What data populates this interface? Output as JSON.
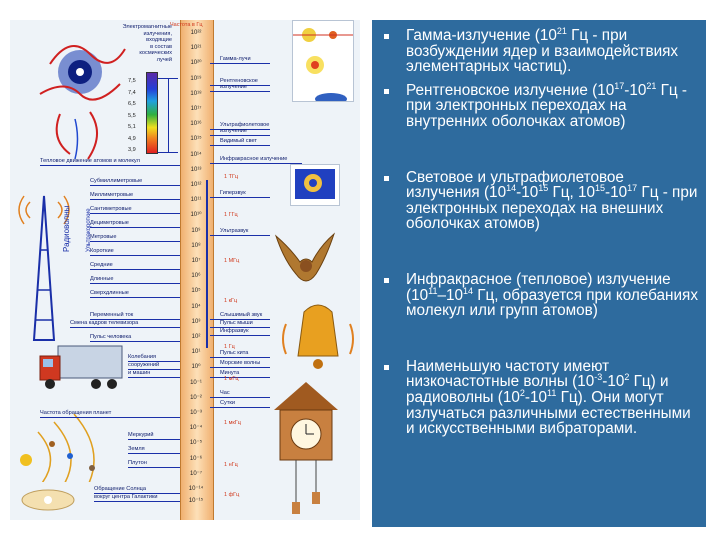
{
  "left": {
    "scale_header": "Частота в Гц",
    "top_labels": [
      "Электромагнитные",
      "излучения,",
      "входящие",
      "в состав",
      "космических",
      "лучей"
    ],
    "ticks": [
      "10²²",
      "10²¹",
      "10²⁰",
      "10¹⁹",
      "10¹⁸",
      "10¹⁷",
      "10¹⁶",
      "10¹⁵",
      "10¹⁴",
      "10¹³",
      "10¹²",
      "10¹¹",
      "10¹⁰",
      "10⁹",
      "10⁸",
      "10⁷",
      "10⁶",
      "10⁵",
      "10⁴",
      "10³",
      "10²",
      "10¹",
      "10⁰",
      "10⁻¹",
      "10⁻²",
      "10⁻³",
      "10⁻⁴",
      "10⁻⁵",
      "10⁻⁶",
      "10⁻⁷",
      "10⁻¹⁴",
      "10⁻¹⁵"
    ],
    "wavelengths": [
      "7,5",
      "7,4",
      "6,5",
      "5,5",
      "5,1",
      "4,9",
      "3,9"
    ],
    "right_labels": [
      {
        "text": "Гамма-лучи"
      },
      {
        "text": "Рентгеновское"
      },
      {
        "text": "излучение"
      },
      {
        "text": "Ультрафиолетовое"
      },
      {
        "text": "излучение"
      },
      {
        "text": "Видимый свет"
      },
      {
        "text": "Инфракрасное излучение"
      },
      {
        "text": "Гиперзвук"
      },
      {
        "text": "Ультразвук"
      },
      {
        "text": "Слышимый звук"
      },
      {
        "text": "Пульс мыши"
      },
      {
        "text": "Инфразвук"
      },
      {
        "text": "Пульс кита"
      },
      {
        "text": "Морские волны"
      },
      {
        "text": "Минута"
      },
      {
        "text": "Час"
      },
      {
        "text": "Сутки"
      }
    ],
    "red_freq_labels": [
      "1 ТГц",
      "1 ГГц",
      "1 МГц",
      "1 кГц",
      "1 Гц",
      "1 мГц",
      "1 мкГц",
      "1 нГц",
      "1 фГц"
    ],
    "left_labels": [
      {
        "text": "Тепловое движение атомов и молекул"
      },
      {
        "text": "Субмиллиметровые"
      },
      {
        "text": "Миллиметровые"
      },
      {
        "text": "Сантиметровые"
      },
      {
        "text": "Дециметровые"
      },
      {
        "text": "Метровые"
      },
      {
        "text": "Короткие"
      },
      {
        "text": "Средние"
      },
      {
        "text": "Длинные"
      },
      {
        "text": "Сверхдлинные"
      },
      {
        "text": "Переменный ток"
      },
      {
        "text": "Смена кадров телевизора"
      },
      {
        "text": "Пульс человека"
      },
      {
        "text": "Колебания"
      },
      {
        "text": "сооружений"
      },
      {
        "text": "и машин"
      },
      {
        "text": "Частота обращения планет"
      },
      {
        "text": "Меркурий"
      },
      {
        "text": "Земля"
      },
      {
        "text": "Плутон"
      },
      {
        "text": "Обращение Солнца"
      },
      {
        "text": "вокруг центра Галактики"
      }
    ],
    "radio_label": "Радиоволны",
    "ultra_label": "Ультракороткие"
  },
  "bullets": [
    {
      "a": "Гамма-излучение (10",
      "sa": "21",
      "b": " Гц - при возбуждении ядер и взаимодействиях элементарных частиц)."
    },
    {
      "a": "Рентгеновское излучение (10",
      "sa": "17",
      "b": "-10",
      "sb": "21",
      "c": " Гц - при электронных переходах на внутренних оболочках атомов)"
    },
    {
      "a": "Световое и ультрафиолетовое излучения (10",
      "sa": "14",
      "b": "-10",
      "sb": "15",
      "c": " Гц,  10",
      "sc": "15",
      "d": "-10",
      "sd": "17",
      "e": " Гц - при электронных переходах на внешних оболочках атомов)"
    },
    {
      "a": "Инфракрасное (тепловое) излучение (10",
      "sa": "11",
      "b": "–10",
      "sb": "14",
      "c": " Гц, образуется при колебаниях молекул или групп атомов)"
    },
    {
      "a": "Наименьшую частоту имеют низкочастотные волны (10",
      "sa": "-3",
      "b": "-10",
      "sb": "2",
      "c": " Гц) и радиоволны (10",
      "sc": "2",
      "d": "-10",
      "sd": "11",
      "e": " Гц). Они могут излучаться различными естественными и искусственными вибраторами."
    }
  ]
}
